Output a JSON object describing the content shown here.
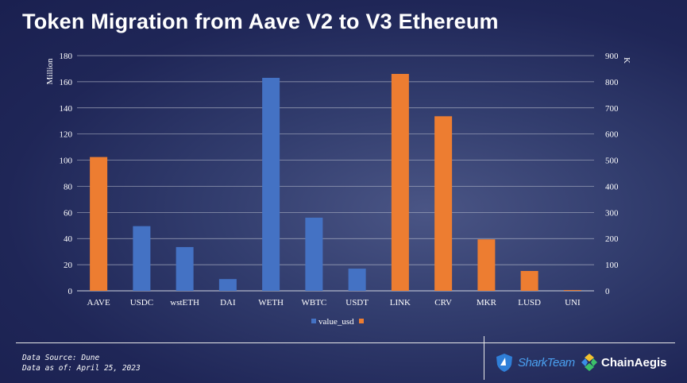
{
  "header": {
    "title": "Token Migration from Aave V2 to V3 Ethereum"
  },
  "chart_data": {
    "type": "bar",
    "title": "Token Migration from Aave V2 to V3 Ethereum",
    "left_axis_label": "Million",
    "right_axis_label": "K",
    "left_ylim": [
      0,
      180
    ],
    "right_ylim": [
      0,
      900
    ],
    "left_ticks": [
      0,
      20,
      40,
      60,
      80,
      100,
      120,
      140,
      160,
      180
    ],
    "right_ticks": [
      0,
      100,
      200,
      300,
      400,
      500,
      600,
      700,
      800,
      900
    ],
    "grid": true,
    "legend_label": "value_usd",
    "legend_position": "bottom",
    "colors": {
      "left_axis_series": "#4472c4",
      "right_axis_series": "#ed7d31"
    },
    "categories": [
      "AAVE",
      "USDC",
      "wstETH",
      "DAI",
      "WETH",
      "WBTC",
      "USDT",
      "LINK",
      "CRV",
      "MKR",
      "LUSD",
      "UNI"
    ],
    "bars": [
      {
        "label": "AAVE",
        "axis": "right",
        "value": 512
      },
      {
        "label": "USDC",
        "axis": "left",
        "value": 49.5
      },
      {
        "label": "wstETH",
        "axis": "left",
        "value": 33.5
      },
      {
        "label": "DAI",
        "axis": "left",
        "value": 9
      },
      {
        "label": "WETH",
        "axis": "left",
        "value": 163
      },
      {
        "label": "WBTC",
        "axis": "left",
        "value": 56
      },
      {
        "label": "USDT",
        "axis": "left",
        "value": 17
      },
      {
        "label": "LINK",
        "axis": "right",
        "value": 830
      },
      {
        "label": "CRV",
        "axis": "right",
        "value": 668
      },
      {
        "label": "MKR",
        "axis": "right",
        "value": 197
      },
      {
        "label": "LUSD",
        "axis": "right",
        "value": 76
      },
      {
        "label": "UNI",
        "axis": "right",
        "value": 3
      }
    ]
  },
  "footer": {
    "source": "Data Source: Dune",
    "date": "Data as of: April 25, 2023",
    "logo1": "SharkTeam",
    "logo2": "ChainAegis",
    "logo1_icon": "shark-shield-icon",
    "logo2_icon": "chainaegis-icon"
  }
}
